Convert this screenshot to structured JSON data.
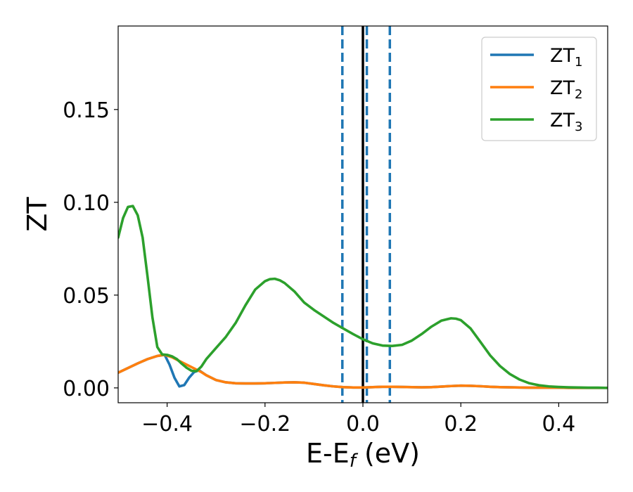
{
  "chart_data": {
    "type": "line",
    "title": "",
    "xlabel": {
      "main": "E-E",
      "sub": "f",
      "unit": " (eV)"
    },
    "ylabel": "ZT",
    "xlim": [
      -0.5,
      0.5
    ],
    "ylim": [
      -0.008,
      0.195
    ],
    "x_ticks": [
      -0.4,
      -0.2,
      0.0,
      0.2,
      0.4
    ],
    "x_tick_labels": [
      "−0.4",
      "−0.2",
      "0.0",
      "0.2",
      "0.4"
    ],
    "y_ticks": [
      0.0,
      0.05,
      0.1,
      0.15
    ],
    "y_tick_labels": [
      "0.00",
      "0.05",
      "0.10",
      "0.15"
    ],
    "grid": false,
    "legend_position": "top-right",
    "series": [
      {
        "name": "ZT",
        "name_sub": "1",
        "color": "#1f77b4",
        "x": [
          -0.5,
          -0.48,
          -0.46,
          -0.44,
          -0.42,
          -0.405,
          -0.395,
          -0.385,
          -0.375,
          -0.365,
          -0.355,
          -0.345,
          -0.335,
          -0.32,
          -0.3,
          -0.28,
          -0.26,
          -0.24,
          -0.22,
          -0.2,
          -0.18,
          -0.16,
          -0.14,
          -0.12,
          -0.1,
          -0.08,
          -0.06,
          -0.04,
          -0.02,
          0.0,
          0.02,
          0.04,
          0.06,
          0.08,
          0.1,
          0.12,
          0.14,
          0.16,
          0.18,
          0.2,
          0.22,
          0.24,
          0.26,
          0.28,
          0.3,
          0.32,
          0.34,
          0.36,
          0.38,
          0.4,
          0.42,
          0.44,
          0.46,
          0.48,
          0.5
        ],
        "y": [
          0.0082,
          0.0107,
          0.0132,
          0.0155,
          0.0172,
          0.0178,
          0.0125,
          0.0055,
          0.0008,
          0.0015,
          0.0055,
          0.0085,
          0.0095,
          0.0068,
          0.0042,
          0.003,
          0.0025,
          0.0024,
          0.0024,
          0.0025,
          0.0027,
          0.0029,
          0.003,
          0.0028,
          0.0021,
          0.0014,
          0.0008,
          0.0004,
          0.0002,
          0.0002,
          0.0004,
          0.0006,
          0.0006,
          0.0005,
          0.0004,
          0.0003,
          0.0004,
          0.0007,
          0.001,
          0.0012,
          0.0011,
          0.0009,
          0.0006,
          0.0004,
          0.0003,
          0.0002,
          0.0001,
          0.0001,
          0.0001,
          0.0001,
          0.0,
          0.0,
          0.0,
          0.0,
          0.0
        ]
      },
      {
        "name": "ZT",
        "name_sub": "2",
        "color": "#ff7f0e",
        "x": [
          -0.5,
          -0.48,
          -0.46,
          -0.44,
          -0.42,
          -0.405,
          -0.39,
          -0.375,
          -0.36,
          -0.345,
          -0.33,
          -0.32,
          -0.3,
          -0.28,
          -0.26,
          -0.24,
          -0.22,
          -0.2,
          -0.18,
          -0.16,
          -0.14,
          -0.12,
          -0.1,
          -0.08,
          -0.06,
          -0.04,
          -0.02,
          0.0,
          0.02,
          0.04,
          0.06,
          0.08,
          0.1,
          0.12,
          0.14,
          0.16,
          0.18,
          0.2,
          0.22,
          0.24,
          0.26,
          0.28,
          0.3,
          0.32,
          0.34,
          0.36,
          0.38,
          0.4,
          0.42,
          0.44,
          0.46,
          0.48,
          0.5
        ],
        "y": [
          0.0082,
          0.0107,
          0.0132,
          0.0155,
          0.0172,
          0.0178,
          0.0165,
          0.0145,
          0.0125,
          0.0105,
          0.0085,
          0.0068,
          0.0042,
          0.003,
          0.0025,
          0.0024,
          0.0024,
          0.0025,
          0.0027,
          0.0029,
          0.003,
          0.0028,
          0.0021,
          0.0014,
          0.0008,
          0.0004,
          0.0002,
          0.0002,
          0.0004,
          0.0006,
          0.0006,
          0.0005,
          0.0004,
          0.0003,
          0.0004,
          0.0007,
          0.001,
          0.0012,
          0.0011,
          0.0009,
          0.0006,
          0.0004,
          0.0003,
          0.0002,
          0.0001,
          0.0001,
          0.0001,
          0.0001,
          0.0,
          0.0,
          0.0,
          0.0,
          0.0
        ]
      },
      {
        "name": "ZT",
        "name_sub": "3",
        "color": "#2ca02c",
        "x": [
          -0.5,
          -0.49,
          -0.48,
          -0.47,
          -0.46,
          -0.45,
          -0.44,
          -0.43,
          -0.42,
          -0.41,
          -0.4,
          -0.39,
          -0.38,
          -0.37,
          -0.36,
          -0.35,
          -0.34,
          -0.33,
          -0.32,
          -0.3,
          -0.28,
          -0.26,
          -0.24,
          -0.22,
          -0.2,
          -0.19,
          -0.18,
          -0.17,
          -0.16,
          -0.14,
          -0.12,
          -0.1,
          -0.08,
          -0.06,
          -0.04,
          -0.02,
          0.0,
          0.02,
          0.04,
          0.06,
          0.08,
          0.1,
          0.12,
          0.14,
          0.16,
          0.18,
          0.19,
          0.2,
          0.22,
          0.24,
          0.26,
          0.28,
          0.3,
          0.32,
          0.34,
          0.36,
          0.38,
          0.4,
          0.42,
          0.44,
          0.46,
          0.48,
          0.5
        ],
        "y": [
          0.081,
          0.0915,
          0.0975,
          0.098,
          0.093,
          0.081,
          0.06,
          0.038,
          0.022,
          0.018,
          0.0178,
          0.017,
          0.0155,
          0.013,
          0.0108,
          0.0092,
          0.009,
          0.0115,
          0.0155,
          0.0215,
          0.0275,
          0.035,
          0.0445,
          0.053,
          0.0575,
          0.0586,
          0.0588,
          0.058,
          0.0565,
          0.052,
          0.046,
          0.042,
          0.0385,
          0.035,
          0.032,
          0.029,
          0.0262,
          0.024,
          0.0228,
          0.0226,
          0.0232,
          0.0255,
          0.029,
          0.033,
          0.0362,
          0.0375,
          0.0373,
          0.0365,
          0.032,
          0.0248,
          0.0175,
          0.0118,
          0.0075,
          0.0045,
          0.0025,
          0.0014,
          0.0008,
          0.0005,
          0.0003,
          0.0002,
          0.0001,
          0.0001,
          0.0
        ]
      }
    ],
    "vlines": [
      {
        "x": -0.042,
        "style": "dashed",
        "color": "#1f77b4"
      },
      {
        "x": 0.008,
        "style": "dashed",
        "color": "#1f77b4"
      },
      {
        "x": 0.055,
        "style": "dashed",
        "color": "#1f77b4"
      },
      {
        "x": 0.0,
        "style": "solid",
        "color": "#000000"
      }
    ]
  }
}
